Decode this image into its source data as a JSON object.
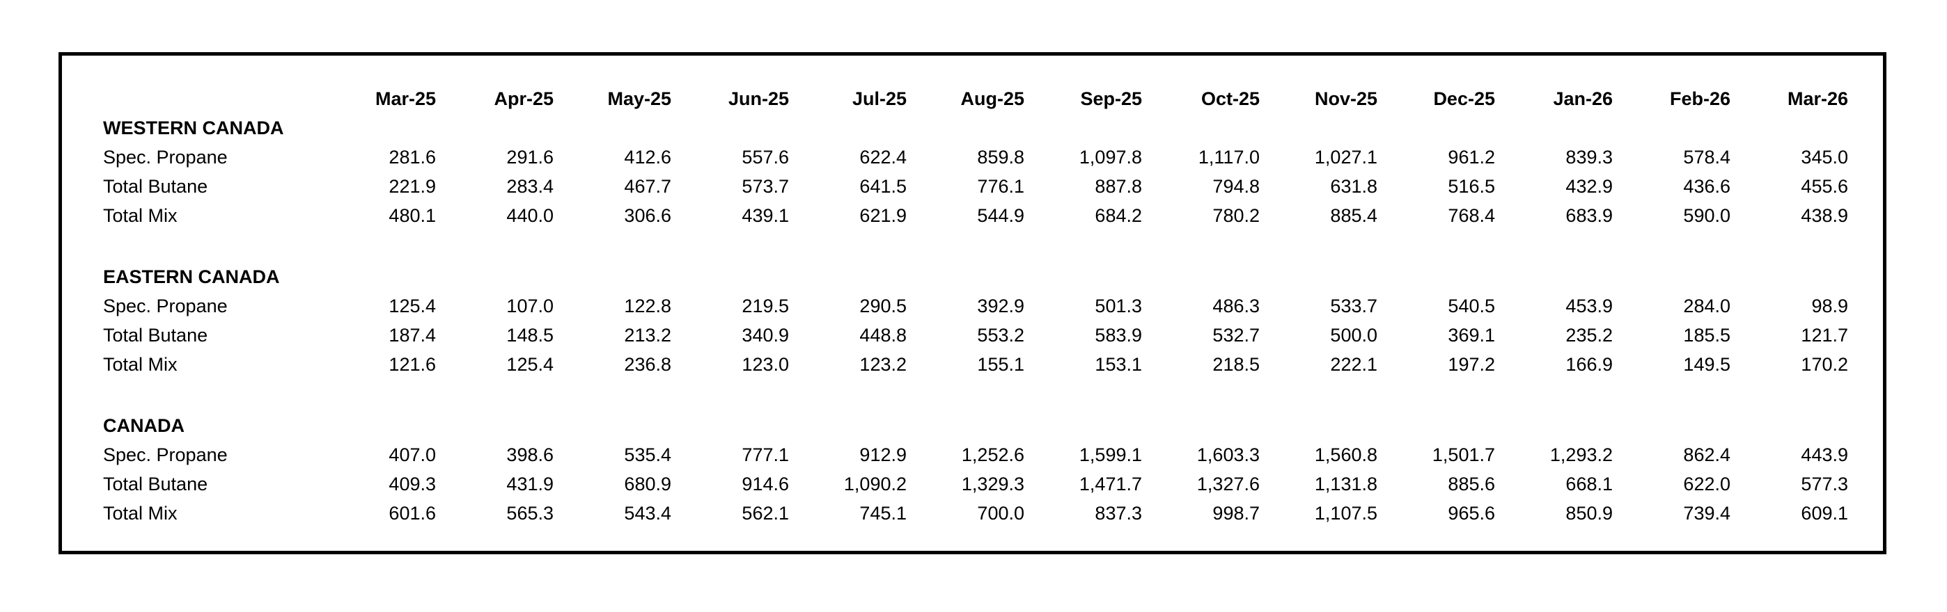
{
  "page": {
    "background": "#ffffff",
    "border_color": "#000000",
    "text_color": "#000000"
  },
  "table": {
    "columns": [
      "Mar-25",
      "Apr-25",
      "May-25",
      "Jun-25",
      "Jul-25",
      "Aug-25",
      "Sep-25",
      "Oct-25",
      "Nov-25",
      "Dec-25",
      "Jan-26",
      "Feb-26",
      "Mar-26"
    ],
    "sections": [
      {
        "label": "WESTERN CANADA",
        "rows": [
          {
            "label": "Spec. Propane",
            "values": [
              "281.6",
              "291.6",
              "412.6",
              "557.6",
              "622.4",
              "859.8",
              "1,097.8",
              "1,117.0",
              "1,027.1",
              "961.2",
              "839.3",
              "578.4",
              "345.0"
            ]
          },
          {
            "label": "Total Butane",
            "values": [
              "221.9",
              "283.4",
              "467.7",
              "573.7",
              "641.5",
              "776.1",
              "887.8",
              "794.8",
              "631.8",
              "516.5",
              "432.9",
              "436.6",
              "455.6"
            ]
          },
          {
            "label": "Total Mix",
            "values": [
              "480.1",
              "440.0",
              "306.6",
              "439.1",
              "621.9",
              "544.9",
              "684.2",
              "780.2",
              "885.4",
              "768.4",
              "683.9",
              "590.0",
              "438.9"
            ]
          }
        ]
      },
      {
        "label": "EASTERN CANADA",
        "rows": [
          {
            "label": "Spec. Propane",
            "values": [
              "125.4",
              "107.0",
              "122.8",
              "219.5",
              "290.5",
              "392.9",
              "501.3",
              "486.3",
              "533.7",
              "540.5",
              "453.9",
              "284.0",
              "98.9"
            ]
          },
          {
            "label": "Total Butane",
            "values": [
              "187.4",
              "148.5",
              "213.2",
              "340.9",
              "448.8",
              "553.2",
              "583.9",
              "532.7",
              "500.0",
              "369.1",
              "235.2",
              "185.5",
              "121.7"
            ]
          },
          {
            "label": "Total Mix",
            "values": [
              "121.6",
              "125.4",
              "236.8",
              "123.0",
              "123.2",
              "155.1",
              "153.1",
              "218.5",
              "222.1",
              "197.2",
              "166.9",
              "149.5",
              "170.2"
            ]
          }
        ]
      },
      {
        "label": "CANADA",
        "rows": [
          {
            "label": "Spec. Propane",
            "values": [
              "407.0",
              "398.6",
              "535.4",
              "777.1",
              "912.9",
              "1,252.6",
              "1,599.1",
              "1,603.3",
              "1,560.8",
              "1,501.7",
              "1,293.2",
              "862.4",
              "443.9"
            ]
          },
          {
            "label": "Total Butane",
            "values": [
              "409.3",
              "431.9",
              "680.9",
              "914.6",
              "1,090.2",
              "1,329.3",
              "1,471.7",
              "1,327.6",
              "1,131.8",
              "885.6",
              "668.1",
              "622.0",
              "577.3"
            ]
          },
          {
            "label": "Total Mix",
            "values": [
              "601.6",
              "565.3",
              "543.4",
              "562.1",
              "745.1",
              "700.0",
              "837.3",
              "998.7",
              "1,107.5",
              "965.6",
              "850.9",
              "739.4",
              "609.1"
            ]
          }
        ]
      }
    ]
  }
}
